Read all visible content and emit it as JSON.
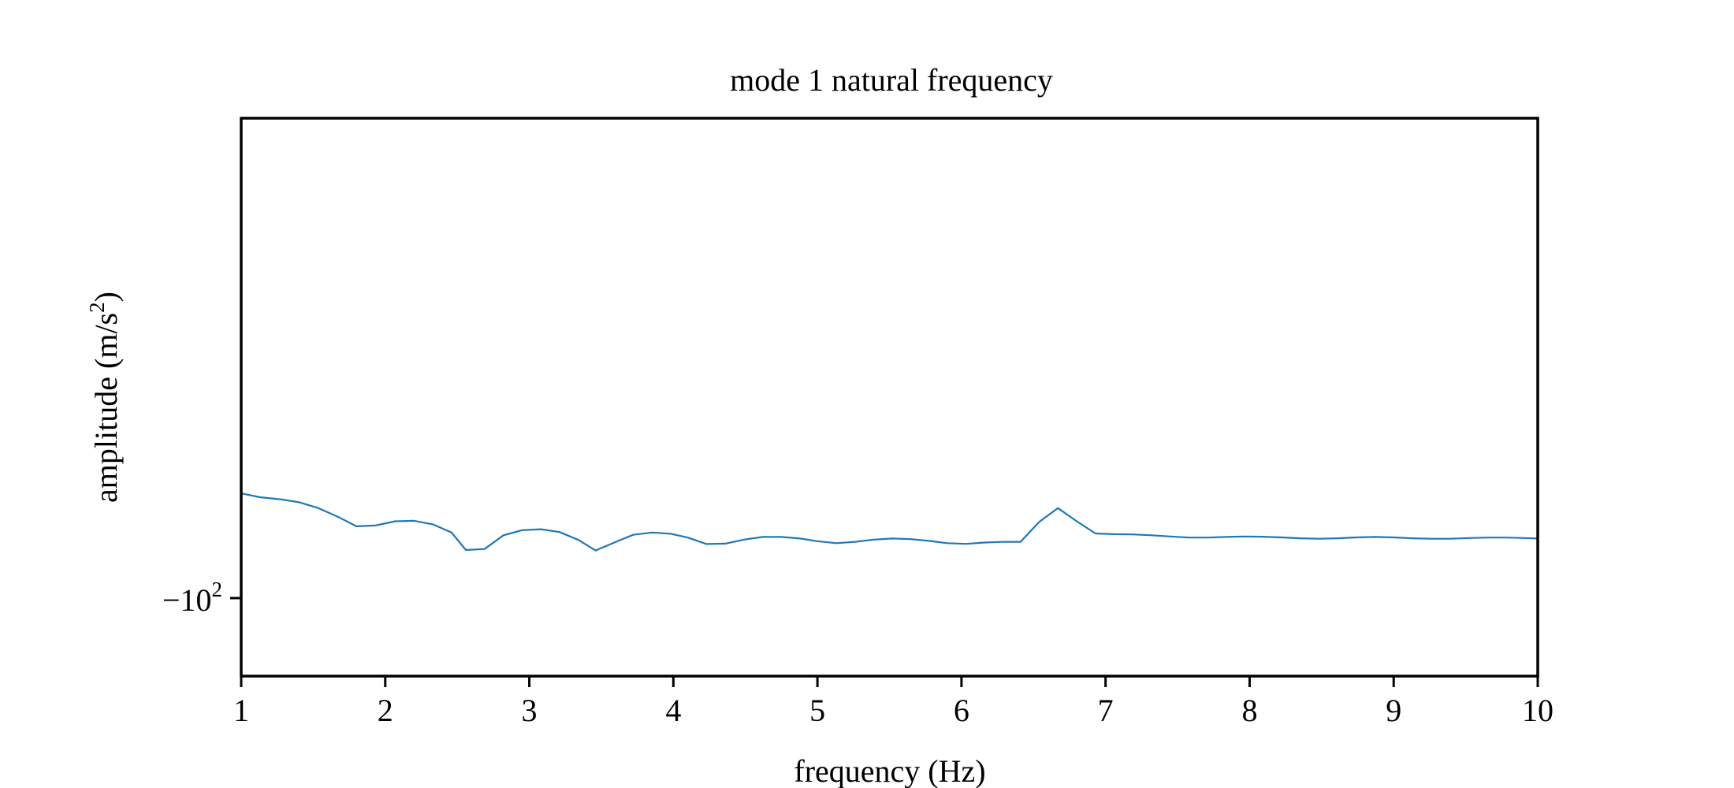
{
  "chart_data": {
    "type": "line",
    "title": "mode 1 natural frequency",
    "xlabel": "frequency (Hz)",
    "ylabel": {
      "text": "amplitude (m/s",
      "superscript": "2",
      "suffix": ")"
    },
    "xlim": [
      1,
      10
    ],
    "x_ticks": [
      1,
      2,
      3,
      4,
      5,
      6,
      7,
      8,
      9,
      10
    ],
    "y_scale": "symlog",
    "y_ticks": [
      {
        "value": -100,
        "base": "−10",
        "exponent": "2"
      }
    ],
    "line_color": "#1f77b4",
    "grid": false,
    "legend": "none",
    "series": [
      {
        "x": [
          1.0,
          1.13,
          1.27,
          1.4,
          1.53,
          1.67,
          1.8,
          1.93,
          2.07,
          2.2,
          2.33,
          2.46,
          2.56,
          2.69,
          2.82,
          2.95,
          3.08,
          3.21,
          3.34,
          3.46,
          3.59,
          3.72,
          3.85,
          3.98,
          4.1,
          4.23,
          4.36,
          4.49,
          4.62,
          4.75,
          4.88,
          5.0,
          5.13,
          5.26,
          5.39,
          5.52,
          5.65,
          5.78,
          5.9,
          6.03,
          6.16,
          6.29,
          6.41,
          6.54,
          6.67,
          6.8,
          6.93,
          7.06,
          7.19,
          7.32,
          7.45,
          7.58,
          7.71,
          7.84,
          7.96,
          8.09,
          8.22,
          8.35,
          8.48,
          8.61,
          8.74,
          8.87,
          9.0,
          9.13,
          9.26,
          9.39,
          9.52,
          9.65,
          9.78,
          9.91,
          10.0
        ],
        "values": [
          -50.5,
          -51.8,
          -52.5,
          -53.5,
          -55.5,
          -58.8,
          -62.6,
          -62.3,
          -60.6,
          -60.4,
          -61.8,
          -65.2,
          -73.1,
          -72.6,
          -66.4,
          -64.2,
          -63.8,
          -65.0,
          -68.4,
          -73.3,
          -69.6,
          -66.2,
          -65.2,
          -65.7,
          -67.4,
          -70.3,
          -70.1,
          -68.3,
          -67.1,
          -67.1,
          -67.8,
          -69.0,
          -69.9,
          -69.3,
          -68.3,
          -67.8,
          -68.1,
          -68.9,
          -69.9,
          -70.2,
          -69.6,
          -69.3,
          -69.3,
          -60.8,
          -55.6,
          -60.6,
          -65.6,
          -65.9,
          -66.0,
          -66.4,
          -66.9,
          -67.4,
          -67.4,
          -67.1,
          -66.9,
          -67.0,
          -67.3,
          -67.7,
          -67.9,
          -67.7,
          -67.3,
          -67.1,
          -67.3,
          -67.7,
          -67.9,
          -67.9,
          -67.6,
          -67.4,
          -67.4,
          -67.6,
          -67.8
        ]
      }
    ]
  }
}
